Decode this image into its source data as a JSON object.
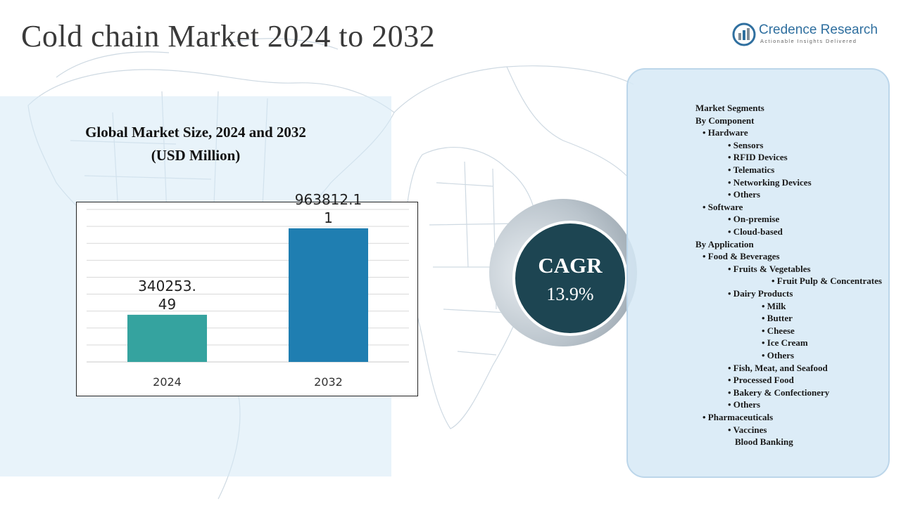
{
  "page": {
    "title": "Cold chain Market 2024 to 2032"
  },
  "logo": {
    "name": "Credence Research",
    "tagline": "Actionable Insights Delivered",
    "icon": "credence-logo-icon"
  },
  "chart": {
    "title_line1": "Global Market Size, 2024 and 2032",
    "title_line2": "(USD Million)"
  },
  "chart_data": {
    "type": "bar",
    "title": "Global Market Size, 2024 and 2032 (USD Million)",
    "categories": [
      "2024",
      "2032"
    ],
    "values": [
      340253.49,
      963812.11
    ],
    "value_labels": [
      [
        "340253.",
        "49"
      ],
      [
        "963812.1",
        "1"
      ]
    ],
    "bar_colors": [
      "#35a39f",
      "#1f7eb1"
    ],
    "ylim": [
      0,
      1100000
    ],
    "grid": true,
    "legend": "none"
  },
  "cagr": {
    "label": "CAGR",
    "value": "13.9%"
  },
  "segments": [
    {
      "text": "Market Segments",
      "level": 0
    },
    {
      "text": "By Component",
      "level": 0
    },
    {
      "text": "•  Hardware",
      "level": 1
    },
    {
      "text": "• Sensors",
      "level": 2
    },
    {
      "text": "•  RFID Devices",
      "level": 2
    },
    {
      "text": "•  Telematics",
      "level": 2
    },
    {
      "text": "•  Networking Devices",
      "level": 2
    },
    {
      "text": "•  Others",
      "level": 2
    },
    {
      "text": "•  Software",
      "level": 1
    },
    {
      "text": "•  On-premise",
      "level": 2
    },
    {
      "text": "•  Cloud-based",
      "level": 2
    },
    {
      "text": "By Application",
      "level": 0
    },
    {
      "text": "•  Food & Beverages",
      "level": 1
    },
    {
      "text": "•  Fruits & Vegetables",
      "level": 2
    },
    {
      "text": "•  Fruit Pulp & Concentrates",
      "level": 3
    },
    {
      "text": "•  Dairy Products",
      "level": 2
    },
    {
      "text": "•  Milk",
      "level": 4
    },
    {
      "text": "•  Butter",
      "level": 4
    },
    {
      "text": "•  Cheese",
      "level": 4
    },
    {
      "text": "•  Ice Cream",
      "level": 4
    },
    {
      "text": "•  Others",
      "level": 4
    },
    {
      "text": "•  Fish, Meat, and Seafood",
      "level": 2
    },
    {
      "text": "•  Processed Food",
      "level": 2
    },
    {
      "text": "•  Bakery & Confectionery",
      "level": 2
    },
    {
      "text": "•  Others",
      "level": 2
    },
    {
      "text": "•  Pharmaceuticals",
      "level": 1
    },
    {
      "text": "•  Vaccines",
      "level": 2
    },
    {
      "text": "Blood Banking",
      "level": 5
    }
  ]
}
